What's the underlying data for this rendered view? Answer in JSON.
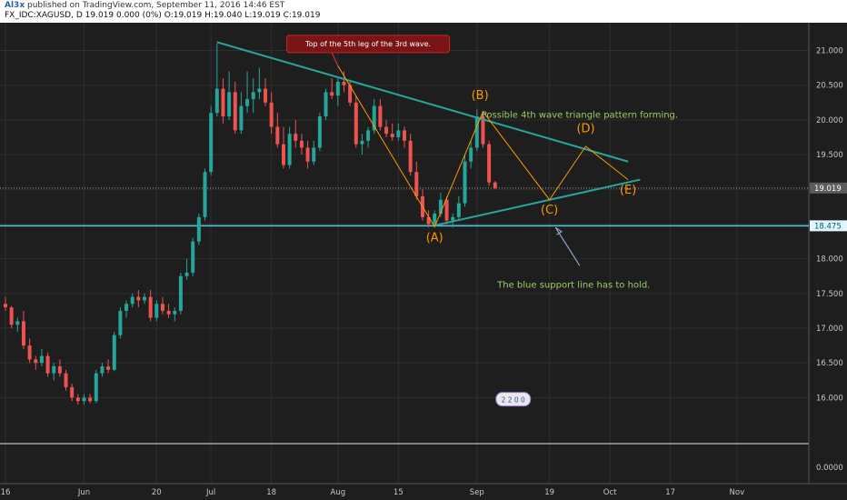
{
  "header": {
    "author": "Al3x",
    "published": "published on TradingView.com, September 11, 2016 14:46 EST",
    "symbol_line": "FX_IDC:XAGUSD, D 19.019 0.000 (0%) O:19.019 H:19.040 L:19.019 C:19.019"
  },
  "chart_data": {
    "type": "candlestick",
    "symbol": "FX_IDC:XAGUSD",
    "interval": "D",
    "y_axis": {
      "range": [
        15.35,
        21.4
      ],
      "ticks": [
        "21.000",
        "20.500",
        "20.000",
        "19.500",
        "19.000",
        "18.500",
        "18.000",
        "17.500",
        "17.000",
        "16.500",
        "16.000"
      ],
      "tick_values": [
        21.0,
        20.5,
        20.0,
        19.5,
        19.0,
        18.5,
        18.0,
        17.5,
        17.0,
        16.5,
        16.0
      ],
      "sub_pane_label": "0.0000"
    },
    "x_axis": {
      "day_range": [
        0,
        132
      ],
      "labels": [
        {
          "text": "16",
          "day": 0
        },
        {
          "text": "Jun",
          "day": 13
        },
        {
          "text": "20",
          "day": 25
        },
        {
          "text": "Jul",
          "day": 34
        },
        {
          "text": "18",
          "day": 44
        },
        {
          "text": "Aug",
          "day": 55
        },
        {
          "text": "15",
          "day": 65
        },
        {
          "text": "Sep",
          "day": 78
        },
        {
          "text": "19",
          "day": 90
        },
        {
          "text": "Oct",
          "day": 100
        },
        {
          "text": "17",
          "day": 110
        },
        {
          "text": "Nov",
          "day": 121
        }
      ]
    },
    "candles": [
      [
        0,
        17.35,
        17.45,
        17.25,
        17.3
      ],
      [
        1,
        17.3,
        17.32,
        17.0,
        17.05
      ],
      [
        2,
        17.05,
        17.15,
        16.95,
        17.1
      ],
      [
        3,
        17.1,
        17.25,
        16.7,
        16.75
      ],
      [
        4,
        16.75,
        16.85,
        16.5,
        16.55
      ],
      [
        5,
        16.55,
        16.6,
        16.4,
        16.5
      ],
      [
        6,
        16.5,
        16.7,
        16.45,
        16.6
      ],
      [
        7,
        16.6,
        16.65,
        16.3,
        16.35
      ],
      [
        8,
        16.35,
        16.5,
        16.25,
        16.45
      ],
      [
        9,
        16.45,
        16.55,
        16.3,
        16.35
      ],
      [
        10,
        16.35,
        16.4,
        16.1,
        16.15
      ],
      [
        11,
        16.15,
        16.2,
        15.95,
        16.0
      ],
      [
        12,
        16.0,
        16.05,
        15.9,
        15.95
      ],
      [
        13,
        15.95,
        16.05,
        15.9,
        16.0
      ],
      [
        14,
        16.0,
        16.05,
        15.92,
        15.95
      ],
      [
        15,
        15.95,
        16.4,
        15.92,
        16.35
      ],
      [
        16,
        16.35,
        16.5,
        16.3,
        16.45
      ],
      [
        17,
        16.45,
        16.55,
        16.35,
        16.4
      ],
      [
        18,
        16.4,
        16.95,
        16.38,
        16.9
      ],
      [
        19,
        16.9,
        17.3,
        16.85,
        17.25
      ],
      [
        20,
        17.25,
        17.4,
        17.15,
        17.35
      ],
      [
        21,
        17.35,
        17.5,
        17.3,
        17.45
      ],
      [
        22,
        17.45,
        17.55,
        17.3,
        17.4
      ],
      [
        23,
        17.4,
        17.5,
        17.35,
        17.45
      ],
      [
        24,
        17.45,
        17.55,
        17.1,
        17.15
      ],
      [
        25,
        17.15,
        17.4,
        17.1,
        17.35
      ],
      [
        26,
        17.35,
        17.45,
        17.2,
        17.25
      ],
      [
        27,
        17.25,
        17.35,
        17.15,
        17.2
      ],
      [
        28,
        17.2,
        17.3,
        17.1,
        17.25
      ],
      [
        29,
        17.25,
        17.8,
        17.2,
        17.75
      ],
      [
        30,
        17.75,
        18.0,
        17.7,
        17.8
      ],
      [
        31,
        17.8,
        18.3,
        17.75,
        18.25
      ],
      [
        32,
        18.25,
        18.65,
        18.2,
        18.6
      ],
      [
        33,
        18.6,
        19.3,
        18.55,
        19.25
      ],
      [
        34,
        19.25,
        20.2,
        19.2,
        20.1
      ],
      [
        35,
        20.1,
        21.1,
        20.05,
        20.45
      ],
      [
        36,
        20.45,
        20.6,
        19.95,
        20.05
      ],
      [
        37,
        20.05,
        20.7,
        20.0,
        20.4
      ],
      [
        38,
        20.4,
        20.55,
        19.8,
        19.85
      ],
      [
        39,
        19.85,
        20.4,
        19.8,
        20.2
      ],
      [
        40,
        20.2,
        20.7,
        20.1,
        20.3
      ],
      [
        41,
        20.3,
        20.6,
        20.1,
        20.4
      ],
      [
        42,
        20.4,
        20.75,
        20.3,
        20.45
      ],
      [
        43,
        20.45,
        20.6,
        20.2,
        20.25
      ],
      [
        44,
        20.25,
        20.4,
        19.8,
        19.9
      ],
      [
        45,
        19.9,
        20.1,
        19.6,
        19.65
      ],
      [
        46,
        19.65,
        19.9,
        19.3,
        19.35
      ],
      [
        47,
        19.35,
        19.9,
        19.3,
        19.8
      ],
      [
        48,
        19.8,
        20.0,
        19.6,
        19.7
      ],
      [
        49,
        19.7,
        19.8,
        19.5,
        19.6
      ],
      [
        50,
        19.6,
        19.7,
        19.3,
        19.4
      ],
      [
        51,
        19.4,
        19.7,
        19.35,
        19.6
      ],
      [
        52,
        19.6,
        20.1,
        19.55,
        20.05
      ],
      [
        53,
        20.05,
        20.45,
        20.0,
        20.4
      ],
      [
        54,
        20.4,
        20.6,
        20.3,
        20.35
      ],
      [
        55,
        20.35,
        20.6,
        20.2,
        20.55
      ],
      [
        56,
        20.55,
        20.7,
        20.4,
        20.5
      ],
      [
        57,
        20.5,
        20.55,
        20.2,
        20.25
      ],
      [
        58,
        20.25,
        20.35,
        19.6,
        19.65
      ],
      [
        59,
        19.65,
        19.8,
        19.5,
        19.7
      ],
      [
        60,
        19.7,
        19.9,
        19.6,
        19.85
      ],
      [
        61,
        19.85,
        20.3,
        19.8,
        20.2
      ],
      [
        62,
        20.2,
        20.3,
        19.85,
        19.9
      ],
      [
        63,
        19.9,
        20.0,
        19.75,
        19.8
      ],
      [
        64,
        19.8,
        19.95,
        19.7,
        19.75
      ],
      [
        65,
        19.75,
        19.95,
        19.7,
        19.85
      ],
      [
        66,
        19.85,
        19.9,
        19.6,
        19.7
      ],
      [
        67,
        19.7,
        19.8,
        19.2,
        19.25
      ],
      [
        68,
        19.25,
        19.4,
        18.85,
        18.9
      ],
      [
        69,
        18.9,
        19.0,
        18.55,
        18.6
      ],
      [
        70,
        18.6,
        18.7,
        18.45,
        18.5
      ],
      [
        71,
        18.5,
        18.7,
        18.45,
        18.65
      ],
      [
        72,
        18.65,
        18.95,
        18.6,
        18.85
      ],
      [
        73,
        18.85,
        18.9,
        18.5,
        18.55
      ],
      [
        74,
        18.55,
        18.65,
        18.45,
        18.6
      ],
      [
        75,
        18.6,
        18.9,
        18.55,
        18.8
      ],
      [
        76,
        18.8,
        19.5,
        18.75,
        19.4
      ],
      [
        77,
        19.4,
        19.7,
        19.3,
        19.6
      ],
      [
        78,
        19.6,
        20.15,
        19.55,
        20.05
      ],
      [
        79,
        20.05,
        20.1,
        19.6,
        19.65
      ],
      [
        80,
        19.65,
        19.7,
        19.05,
        19.1
      ],
      [
        81,
        19.1,
        19.12,
        19.0,
        19.02
      ]
    ],
    "series": [
      {
        "role": "resistance",
        "color": "#26a69a",
        "points": [
          [
            35,
            21.12
          ],
          [
            103,
            19.4
          ]
        ]
      },
      {
        "role": "support",
        "color": "#26a69a",
        "points": [
          [
            71,
            18.48
          ],
          [
            105,
            19.14
          ]
        ]
      },
      {
        "role": "wave",
        "color": "#ff9800",
        "points": [
          [
            55,
            20.78
          ],
          [
            71,
            18.46
          ],
          [
            79,
            20.12
          ],
          [
            90,
            18.85
          ],
          [
            96,
            19.62
          ],
          [
            103,
            19.14
          ]
        ]
      }
    ],
    "horizontal_lines": [
      {
        "value": 18.475,
        "color": "#4dd0e1",
        "label": "18.475"
      },
      {
        "value": 19.019,
        "color": "#9e9e9e",
        "style": "dotted",
        "label": "19.019"
      }
    ],
    "wave_labels": [
      {
        "text": "(A)",
        "day": 71,
        "value": 18.25
      },
      {
        "text": "(B)",
        "day": 78.5,
        "value": 20.3
      },
      {
        "text": "(C)",
        "day": 90,
        "value": 18.65
      },
      {
        "text": "(D)",
        "day": 96,
        "value": 19.82
      },
      {
        "text": "(E)",
        "day": 103,
        "value": 18.94
      }
    ],
    "annotations": [
      {
        "text": "Top of the 5th leg of the 3rd wave.",
        "kind": "callout",
        "day": 60,
        "value": 21.1,
        "point_day": 55,
        "point_value": 20.78
      },
      {
        "text": "Possible 4th wave triangle pattern forming.",
        "kind": "text",
        "day": 95,
        "value": 20.03,
        "color": "#9ccc65"
      },
      {
        "text": "The blue support line has to hold.",
        "kind": "text",
        "day": 94,
        "value": 17.58,
        "color": "#9ccc65"
      }
    ],
    "arrow": {
      "from_day": 95,
      "from_value": 17.9,
      "to_day": 91,
      "to_value": 18.45
    },
    "event_badge": {
      "text": "2 2 0 0",
      "day": 84,
      "value": 15.97
    },
    "colors": {
      "up": "#26a69a",
      "down": "#ef5350",
      "background": "#1e1e1e",
      "grid": "#2f2f2f",
      "axis_text": "#c8c8c8"
    }
  }
}
